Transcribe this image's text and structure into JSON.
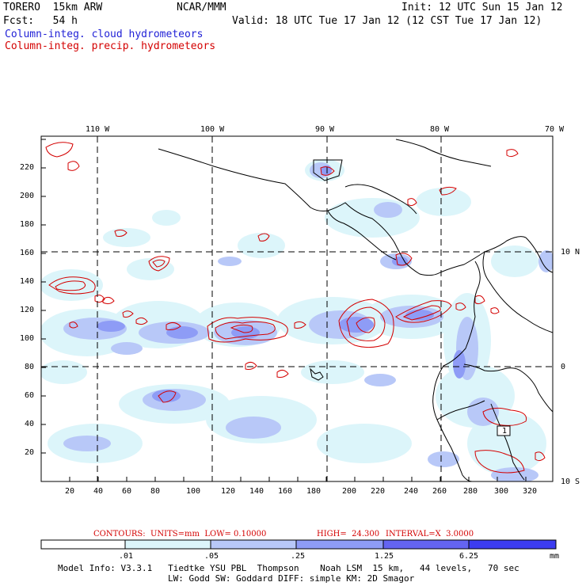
{
  "header": {
    "model": "TORERO  15km ARW",
    "center": "NCAR/MMM",
    "init": "Init: 12 UTC Sun 15 Jan 12",
    "fcst": "Fcst:   54 h",
    "valid": "Valid: 18 UTC Tue 17 Jan 12 (12 CST Tue 17 Jan 12)",
    "field_cloud": "Column-integ. cloud hydrometeors",
    "field_precip": "Column-integ. precip. hydrometeors"
  },
  "axes": {
    "lon_labels": [
      "110 W",
      "100 W",
      "90 W",
      "80 W",
      "70 W"
    ],
    "lat_labels": [
      "10 N",
      "0",
      "10 S"
    ],
    "x_ticks": [
      "20",
      "40",
      "60",
      "80",
      "100",
      "120",
      "140",
      "160",
      "180",
      "200",
      "220",
      "240",
      "260",
      "280",
      "300",
      "320"
    ],
    "y_ticks": [
      "20",
      "40",
      "60",
      "80",
      "100",
      "120",
      "140",
      "160",
      "180",
      "200",
      "220"
    ],
    "contour_label": "1"
  },
  "contours_info": {
    "units": "CONTOURS:  UNITS=mm  LOW= 0.10000",
    "high": "HIGH=  24.300",
    "interval": "INTERVAL=X  3.0000"
  },
  "colorbar": {
    "labels": [
      ".01",
      ".05",
      ".25",
      "1.25",
      "6.25"
    ],
    "unit": "mm",
    "colors": [
      "#ffffff",
      "#dcf5fa",
      "#b8c8f8",
      "#8e9cf6",
      "#6464f2",
      "#3c3cf0"
    ]
  },
  "footer": {
    "line1": "Model Info: V3.3.1   Tiedtke YSU PBL  Thompson    Noah LSM  15 km,   44 levels,   70 sec",
    "line2": "LW: Godd SW: Goddard DIFF: simple KM: 2D Smagor"
  }
}
